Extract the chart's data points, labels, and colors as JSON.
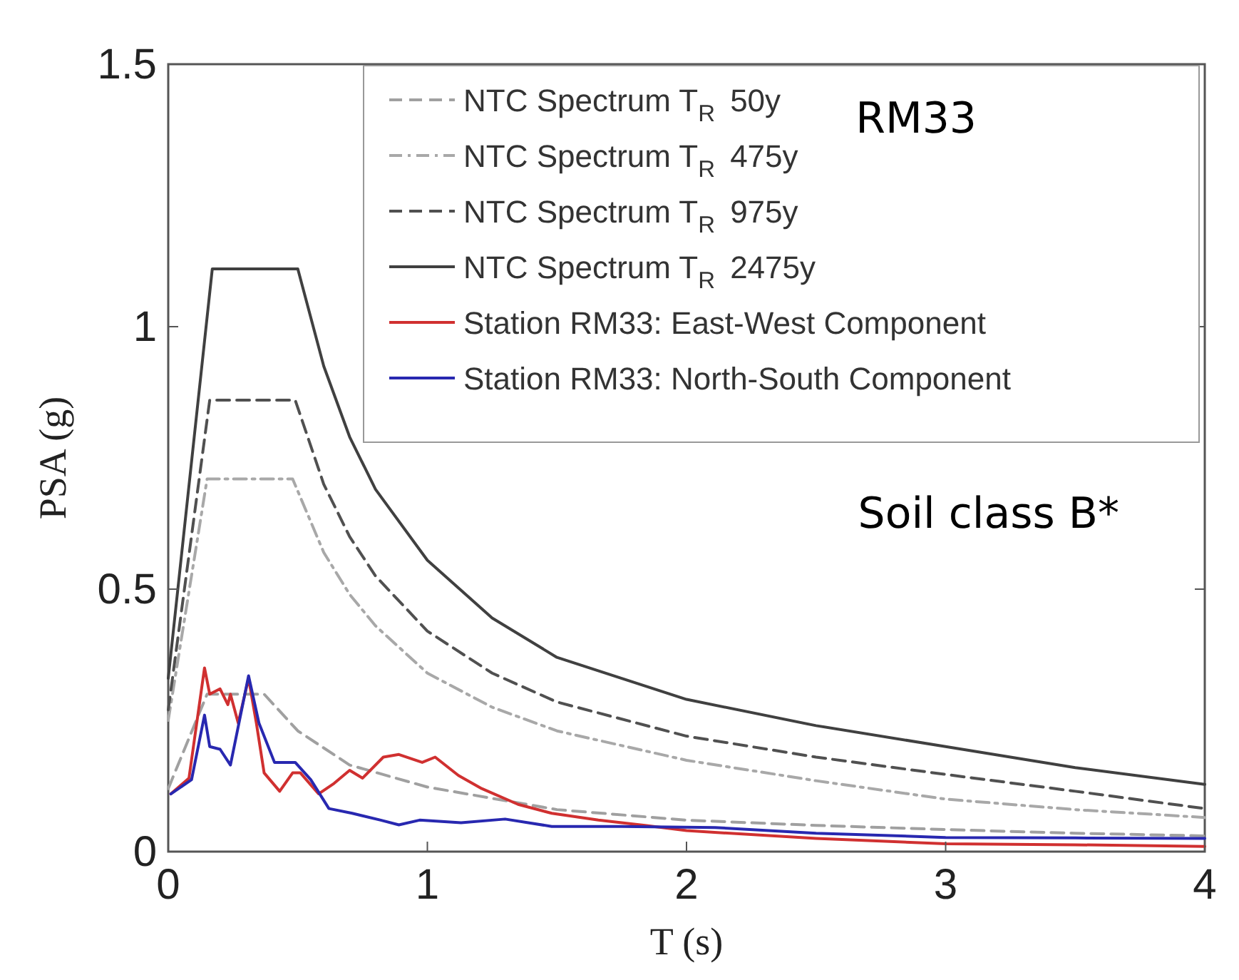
{
  "chart_data": {
    "type": "line",
    "xlabel": "T (s)",
    "ylabel": "PSA (g)",
    "xlim": [
      0,
      4
    ],
    "ylim": [
      0,
      1.5
    ],
    "xticks": [
      0,
      1,
      2,
      3,
      4
    ],
    "yticks": [
      0,
      {
        "value": 0.5,
        "label": "0.5"
      },
      1,
      {
        "value": 1.5,
        "label": "1.5"
      }
    ],
    "grid": false,
    "legend": "top right",
    "annotations": [
      "RM33",
      "Soil class B*"
    ],
    "series": [
      {
        "name": "NTC Spectrum T$_{R}$ 50y",
        "color": "#a0a0a0",
        "line_style": "dashed",
        "x": [
          0,
          0.15,
          0.37,
          0.5,
          0.7,
          1,
          1.5,
          2,
          2.5,
          3,
          3.5,
          4
        ],
        "values": [
          0.12,
          0.3,
          0.3,
          0.23,
          0.165,
          0.123,
          0.08,
          0.06,
          0.05,
          0.042,
          0.035,
          0.03
        ]
      },
      {
        "name": "NTC Spectrum T$_{R}$ 475y",
        "color": "#a8a8a8",
        "line_style": "dashdot",
        "x": [
          0,
          0.15,
          0.48,
          0.6,
          0.7,
          0.8,
          1,
          1.25,
          1.5,
          2,
          2.5,
          3,
          3.5,
          4
        ],
        "values": [
          0.25,
          0.71,
          0.71,
          0.57,
          0.49,
          0.43,
          0.34,
          0.275,
          0.23,
          0.174,
          0.135,
          0.1,
          0.08,
          0.065
        ]
      },
      {
        "name": "NTC Spectrum T$_{R}$ 975y",
        "color": "#505050",
        "line_style": "dashed",
        "x": [
          0,
          0.16,
          0.49,
          0.6,
          0.7,
          0.8,
          1,
          1.25,
          1.5,
          2,
          2.5,
          3,
          3.5,
          4
        ],
        "values": [
          0.27,
          0.86,
          0.86,
          0.7,
          0.6,
          0.525,
          0.42,
          0.34,
          0.285,
          0.22,
          0.18,
          0.147,
          0.115,
          0.082
        ]
      },
      {
        "name": "NTC Spectrum T$_{R}$ 2475y",
        "color": "#404040",
        "line_style": "solid",
        "x": [
          0,
          0.17,
          0.5,
          0.6,
          0.7,
          0.8,
          1,
          1.25,
          1.5,
          2,
          2.5,
          3,
          3.5,
          4
        ],
        "values": [
          0.33,
          1.11,
          1.11,
          0.925,
          0.79,
          0.69,
          0.555,
          0.445,
          0.37,
          0.29,
          0.24,
          0.2,
          0.16,
          0.128
        ]
      },
      {
        "name": "Station RM33: East-West Component",
        "color": "#d03030",
        "line_style": "solid",
        "x": [
          0.01,
          0.08,
          0.14,
          0.16,
          0.2,
          0.23,
          0.24,
          0.27,
          0.31,
          0.34,
          0.37,
          0.43,
          0.48,
          0.51,
          0.58,
          0.64,
          0.7,
          0.75,
          0.83,
          0.89,
          0.98,
          1.03,
          1.12,
          1.21,
          1.35,
          1.48,
          1.66,
          1.84,
          2,
          2.5,
          3,
          3.5,
          4
        ],
        "values": [
          0.11,
          0.14,
          0.35,
          0.3,
          0.31,
          0.28,
          0.3,
          0.245,
          0.33,
          0.245,
          0.15,
          0.115,
          0.15,
          0.15,
          0.11,
          0.13,
          0.155,
          0.14,
          0.18,
          0.185,
          0.17,
          0.18,
          0.145,
          0.12,
          0.09,
          0.073,
          0.06,
          0.05,
          0.04,
          0.025,
          0.015,
          0.013,
          0.01
        ]
      },
      {
        "name": "Station RM33: North-South Component",
        "color": "#2828b0",
        "line_style": "solid",
        "x": [
          0.01,
          0.09,
          0.14,
          0.16,
          0.2,
          0.24,
          0.31,
          0.35,
          0.41,
          0.49,
          0.55,
          0.62,
          0.71,
          0.82,
          0.89,
          0.97,
          1.13,
          1.3,
          1.48,
          1.75,
          2.11,
          2.5,
          3,
          3.5,
          4
        ],
        "values": [
          0.11,
          0.137,
          0.26,
          0.2,
          0.195,
          0.165,
          0.335,
          0.245,
          0.17,
          0.17,
          0.137,
          0.082,
          0.073,
          0.06,
          0.051,
          0.06,
          0.055,
          0.062,
          0.048,
          0.048,
          0.046,
          0.035,
          0.027,
          0.026,
          0.025
        ]
      }
    ]
  }
}
